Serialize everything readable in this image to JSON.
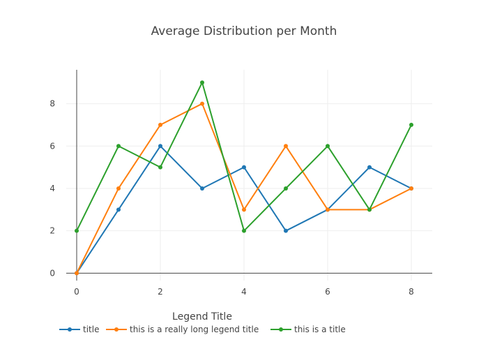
{
  "chart_data": {
    "type": "line",
    "title": "Average Distribution per Month",
    "x": [
      0,
      1,
      2,
      3,
      4,
      5,
      6,
      7,
      8
    ],
    "xlim": [
      -0.25,
      8.5
    ],
    "ylim": [
      -0.35,
      9.6
    ],
    "xticks": [
      0,
      2,
      4,
      6,
      8
    ],
    "yticks": [
      0,
      2,
      4,
      6,
      8
    ],
    "grid": true,
    "legend": {
      "title": "Legend Title",
      "placement": "bottom-horizontal"
    },
    "series": [
      {
        "name": "title",
        "color": "#1f77b4",
        "values": [
          0,
          3,
          6,
          4,
          5,
          2,
          3,
          5,
          4
        ]
      },
      {
        "name": "this is a really long legend title",
        "color": "#ff7f0e",
        "values": [
          0,
          4,
          7,
          8,
          3,
          6,
          3,
          3,
          4
        ]
      },
      {
        "name": "this is a title",
        "color": "#2ca02c",
        "values": [
          2,
          6,
          5,
          9,
          2,
          4,
          6,
          3,
          7
        ]
      }
    ]
  }
}
